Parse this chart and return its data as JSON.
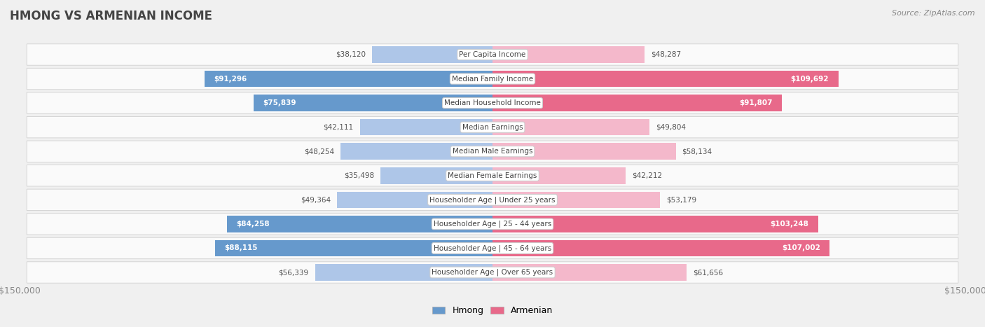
{
  "title": "HMONG VS ARMENIAN INCOME",
  "source": "Source: ZipAtlas.com",
  "categories": [
    "Per Capita Income",
    "Median Family Income",
    "Median Household Income",
    "Median Earnings",
    "Median Male Earnings",
    "Median Female Earnings",
    "Householder Age | Under 25 years",
    "Householder Age | 25 - 44 years",
    "Householder Age | 45 - 64 years",
    "Householder Age | Over 65 years"
  ],
  "hmong_values": [
    38120,
    91296,
    75839,
    42111,
    48254,
    35498,
    49364,
    84258,
    88115,
    56339
  ],
  "armenian_values": [
    48287,
    109692,
    91807,
    49804,
    58134,
    42212,
    53179,
    103248,
    107002,
    61656
  ],
  "hmong_color_light": "#aec6e8",
  "hmong_color_dark": "#6699cc",
  "armenian_color_light": "#f4b8cb",
  "armenian_color_dark": "#e8698a",
  "max_value": 150000,
  "bg_color": "#f0f0f0",
  "row_bg": "#fafafa",
  "label_bg": "#ffffff",
  "title_color": "#444444",
  "tick_color": "#888888",
  "legend_hmong": "Hmong",
  "legend_armenian": "Armenian",
  "inside_threshold": 65000
}
